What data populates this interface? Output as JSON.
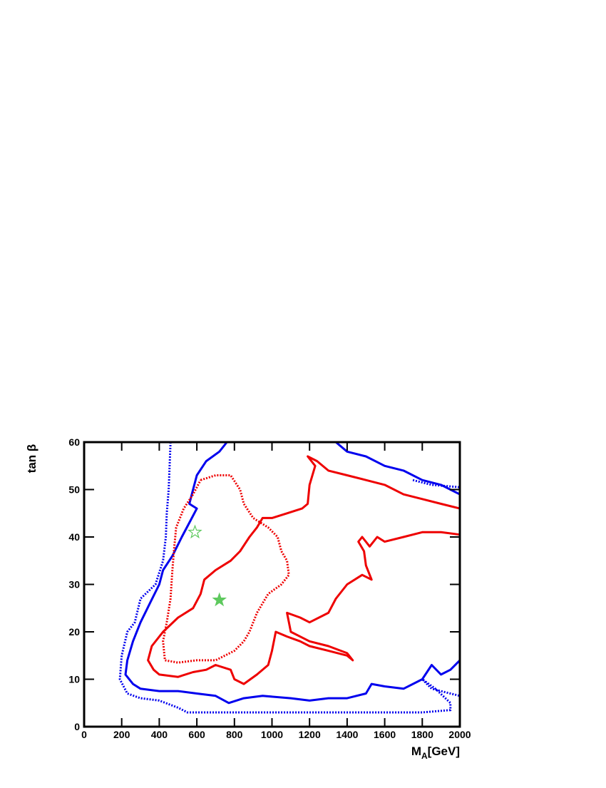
{
  "chart_data": {
    "type": "line",
    "xlabel": [
      "M",
      "A",
      "[GeV]"
    ],
    "ylabel": "tan β",
    "xlim": [
      0,
      2000
    ],
    "ylim": [
      0,
      60
    ],
    "xticks": [
      0,
      200,
      400,
      600,
      800,
      1000,
      1200,
      1400,
      1600,
      1800,
      2000
    ],
    "yticks": [
      0,
      10,
      20,
      30,
      40,
      50,
      60
    ],
    "series": [
      {
        "color": "#0000ee",
        "style": "solid",
        "x": [
          760,
          720,
          650,
          600,
          580,
          560,
          600,
          560,
          520,
          470,
          420,
          400,
          350,
          300,
          260,
          230,
          220,
          260,
          300,
          400,
          500,
          600,
          700,
          770,
          850,
          950,
          1100,
          1200,
          1300,
          1400,
          1500,
          1530,
          1600,
          1700,
          1800,
          1850,
          1900,
          1950,
          2000
        ],
        "values": [
          60,
          58,
          56,
          53,
          50,
          47,
          46,
          43,
          40,
          36,
          33,
          30,
          26,
          22,
          18,
          14,
          11,
          9,
          8,
          7.5,
          7.5,
          7,
          6.5,
          5,
          6,
          6.5,
          6,
          5.5,
          6,
          6,
          7,
          9,
          8.5,
          8,
          10,
          13,
          11,
          12,
          14
        ]
      },
      {
        "color": "#0000ee",
        "style": "solid",
        "x": [
          1340,
          1400,
          1500,
          1600,
          1700,
          1800,
          1900,
          2000
        ],
        "values": [
          60,
          58,
          57,
          55,
          54,
          52,
          51,
          49
        ]
      },
      {
        "color": "#0000ee",
        "style": "dotted",
        "x": [
          460,
          455,
          450,
          440,
          435,
          420,
          380,
          300,
          270,
          230,
          200,
          190,
          230,
          300,
          400,
          500,
          550,
          700,
          800,
          1000,
          1200,
          1400,
          1600,
          1800,
          1950,
          1950,
          1870,
          1800,
          1850,
          1950,
          2000
        ],
        "values": [
          60,
          55,
          50,
          45,
          40,
          35,
          30,
          27,
          22,
          20,
          15,
          10,
          7,
          6,
          5.5,
          4,
          3,
          3,
          3,
          3,
          3,
          3,
          3,
          3,
          3.5,
          5,
          8,
          10,
          8,
          7,
          6.5
        ]
      },
      {
        "color": "#0000ee",
        "style": "dotted",
        "x": [
          1750,
          1850,
          2000
        ],
        "values": [
          52,
          51,
          50.5
        ]
      },
      {
        "color": "#ee0000",
        "style": "solid",
        "x": [
          2000,
          1900,
          1800,
          1700,
          1600,
          1500,
          1400,
          1300,
          1240,
          1190,
          1230,
          1200,
          1190,
          1160,
          1080,
          1000,
          950,
          920,
          880,
          830,
          780,
          700,
          640,
          620,
          580,
          500,
          420,
          360,
          340,
          370,
          400,
          500,
          580,
          650,
          700,
          780,
          800,
          850,
          920,
          980,
          1000,
          1020,
          1080,
          1150,
          1200,
          1300,
          1400,
          1430,
          1400,
          1300,
          1200,
          1100,
          1080,
          1150,
          1200,
          1300,
          1340,
          1400,
          1480,
          1530,
          1500,
          1490,
          1460,
          1480,
          1520,
          1560,
          1600,
          1700,
          1800,
          1900,
          2000
        ],
        "values": [
          46,
          47,
          48,
          49,
          51,
          52,
          53,
          54,
          56,
          57,
          55,
          51,
          47,
          46,
          45,
          44,
          44,
          42,
          40,
          37,
          35,
          33,
          31,
          28,
          25,
          23,
          20,
          17,
          14,
          12,
          11,
          10.5,
          11.5,
          12,
          13,
          12,
          10,
          9,
          11,
          13,
          16,
          20,
          19,
          18,
          17,
          16,
          15,
          14,
          15.5,
          17,
          18,
          20,
          24,
          23,
          22,
          24,
          27,
          30,
          32,
          31,
          34,
          37,
          39,
          40,
          38,
          40,
          39,
          40,
          41,
          41,
          40.5
        ]
      },
      {
        "color": "#ee0000",
        "style": "dotted",
        "x": [
          620,
          700,
          780,
          830,
          850,
          900,
          980,
          1030,
          1050,
          1080,
          1090,
          1050,
          980,
          920,
          880,
          850,
          800,
          700,
          600,
          500,
          430,
          420,
          440,
          460,
          470,
          480,
          490,
          530,
          580,
          620
        ],
        "values": [
          52,
          53,
          53,
          50,
          47,
          44,
          42,
          40,
          37,
          35,
          32,
          30,
          28,
          24,
          20,
          18,
          16,
          14,
          14,
          13.5,
          14,
          18,
          22,
          27,
          33,
          38,
          42,
          46,
          49,
          52
        ]
      }
    ],
    "markers": [
      {
        "x": 720,
        "y": 26.7,
        "color": "#5ec95e",
        "filled": true
      },
      {
        "x": 590,
        "y": 41,
        "color": "#5ec95e",
        "filled": false
      }
    ]
  }
}
